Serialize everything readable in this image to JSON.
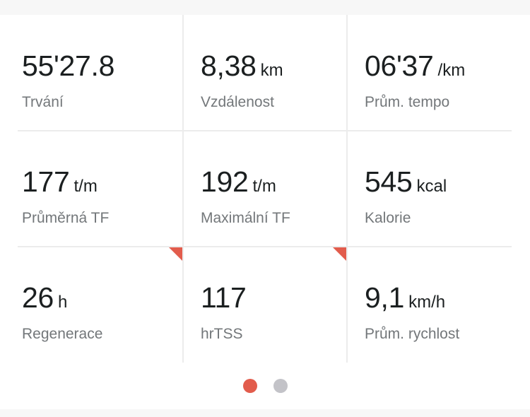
{
  "stats": [
    {
      "value": "55'27.8",
      "unit": "",
      "label": "Trvání"
    },
    {
      "value": "8,38",
      "unit": "km",
      "label": "Vzdálenost"
    },
    {
      "value": "06'37",
      "unit": "/km",
      "label": "Prům. tempo"
    },
    {
      "value": "177",
      "unit": "t/m",
      "label": "Průměrná TF"
    },
    {
      "value": "192",
      "unit": "t/m",
      "label": "Maximální TF"
    },
    {
      "value": "545",
      "unit": "kcal",
      "label": "Kalorie"
    },
    {
      "value": "26",
      "unit": "h",
      "label": "Regenerace"
    },
    {
      "value": "117",
      "unit": "",
      "label": "hrTSS"
    },
    {
      "value": "9,1",
      "unit": "km/h",
      "label": "Prům. rychlost"
    }
  ],
  "pagination": {
    "total": 2,
    "active": 1
  },
  "colors": {
    "accent": "#e25c4c",
    "inactive_dot": "#c3c3c8",
    "label": "#73777a",
    "value": "#1b1f20"
  }
}
